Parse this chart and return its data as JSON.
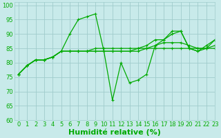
{
  "title": "",
  "xlabel": "Humidité relative (%)",
  "ylabel": "",
  "background_color": "#c8eaea",
  "grid_color": "#a0cccc",
  "line_color": "#00aa00",
  "marker_color": "#00aa00",
  "xlim": [
    -0.5,
    23
  ],
  "ylim": [
    60,
    101
  ],
  "xticks": [
    0,
    1,
    2,
    3,
    4,
    5,
    6,
    7,
    8,
    9,
    10,
    11,
    12,
    13,
    14,
    15,
    16,
    17,
    18,
    19,
    20,
    21,
    22,
    23
  ],
  "yticks": [
    60,
    65,
    70,
    75,
    80,
    85,
    90,
    95,
    100
  ],
  "lines": [
    {
      "x": [
        0,
        1,
        2,
        3,
        4,
        5,
        6,
        7,
        8,
        9,
        10,
        11,
        12,
        13,
        14,
        15,
        16,
        17,
        18,
        19,
        20,
        21,
        22,
        23
      ],
      "y": [
        76,
        79,
        81,
        81,
        82,
        84,
        90,
        95,
        96,
        97,
        84,
        67,
        80,
        73,
        74,
        76,
        86,
        88,
        91,
        91,
        85,
        84,
        86,
        88
      ]
    },
    {
      "x": [
        0,
        1,
        2,
        3,
        4,
        5,
        6,
        7,
        8,
        9,
        10,
        11,
        12,
        13,
        14,
        15,
        16,
        17,
        18,
        19,
        20,
        21,
        22,
        23
      ],
      "y": [
        76,
        79,
        81,
        81,
        82,
        84,
        84,
        84,
        84,
        85,
        85,
        85,
        85,
        85,
        85,
        85,
        86,
        87,
        87,
        87,
        86,
        85,
        85,
        86
      ]
    },
    {
      "x": [
        0,
        1,
        2,
        3,
        4,
        5,
        6,
        7,
        8,
        9,
        10,
        11,
        12,
        13,
        14,
        15,
        16,
        17,
        18,
        19,
        20,
        21,
        22,
        23
      ],
      "y": [
        76,
        79,
        81,
        81,
        82,
        84,
        84,
        84,
        84,
        84,
        84,
        84,
        84,
        84,
        85,
        86,
        88,
        88,
        90,
        91,
        85,
        84,
        85,
        88
      ]
    },
    {
      "x": [
        0,
        1,
        2,
        3,
        4,
        5,
        6,
        7,
        8,
        9,
        10,
        11,
        12,
        13,
        14,
        15,
        16,
        17,
        18,
        19,
        20,
        21,
        22,
        23
      ],
      "y": [
        76,
        79,
        81,
        81,
        82,
        84,
        84,
        84,
        84,
        84,
        84,
        84,
        84,
        84,
        84,
        85,
        85,
        85,
        85,
        85,
        85,
        85,
        85,
        85
      ]
    }
  ],
  "xlabel_fontsize": 8,
  "tick_fontsize": 6,
  "linewidth": 0.9,
  "markersize": 2.2
}
